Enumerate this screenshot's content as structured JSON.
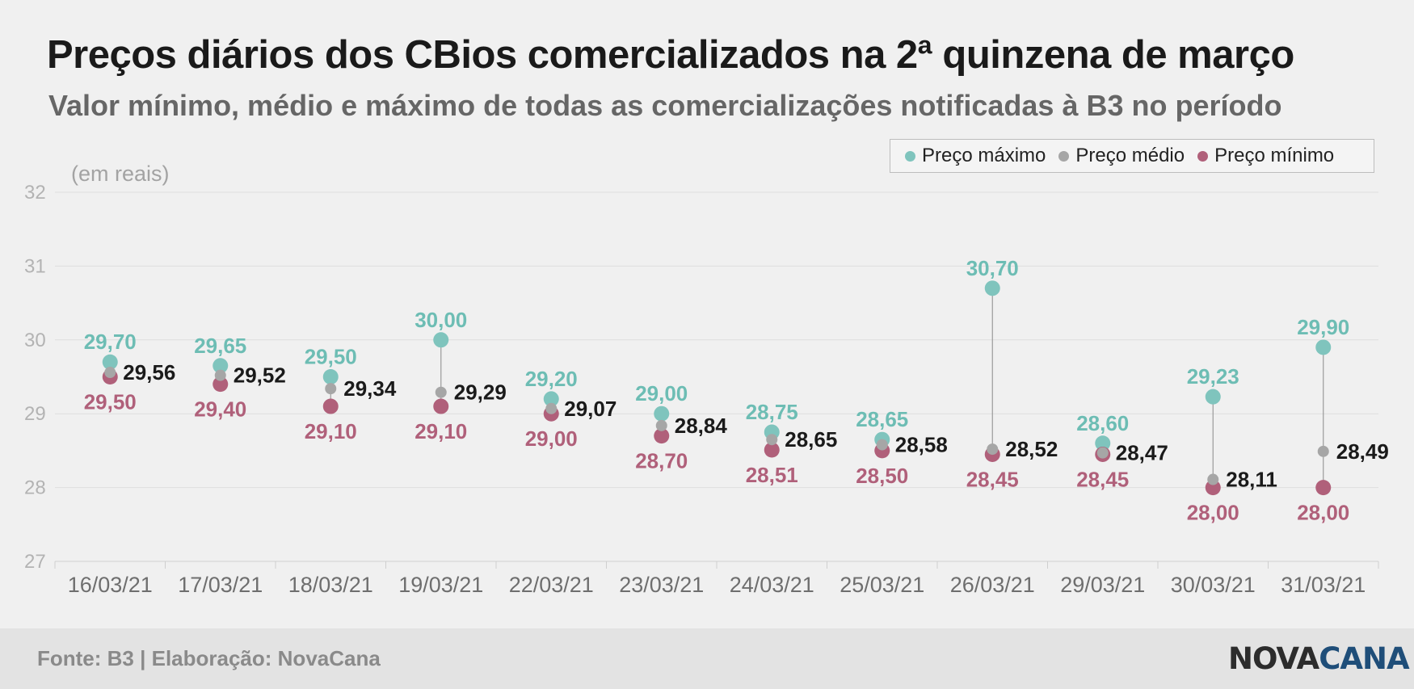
{
  "header": {
    "title": "Preços diários dos CBios comercializados na 2ª quinzena de março",
    "subtitle": "Valor mínimo, médio e máximo de todas as comercializações notificadas à B3 no período"
  },
  "legend": {
    "items": [
      {
        "label": "Preço máximo",
        "color": "#7fc4bd"
      },
      {
        "label": "Preço médio",
        "color": "#a6a6a6"
      },
      {
        "label": "Preço mínimo",
        "color": "#b0607a"
      }
    ]
  },
  "chart_data": {
    "type": "scatter",
    "unit_label": "(em reais)",
    "categories": [
      "16/03/21",
      "17/03/21",
      "18/03/21",
      "19/03/21",
      "22/03/21",
      "23/03/21",
      "24/03/21",
      "25/03/21",
      "26/03/21",
      "29/03/21",
      "30/03/21",
      "31/03/21"
    ],
    "series": [
      {
        "name": "Preço máximo",
        "color": "#7fc4bd",
        "label_color": "#6dbdb4",
        "values": [
          29.7,
          29.65,
          29.5,
          30.0,
          29.2,
          29.0,
          28.75,
          28.65,
          30.7,
          28.6,
          29.23,
          29.9
        ],
        "labels": [
          "29,70",
          "29,65",
          "29,50",
          "30,00",
          "29,20",
          "29,00",
          "28,75",
          "28,65",
          "30,70",
          "28,60",
          "29,23",
          "29,90"
        ]
      },
      {
        "name": "Preço médio",
        "color": "#a6a6a6",
        "label_color": "#1a1a1a",
        "values": [
          29.56,
          29.52,
          29.34,
          29.29,
          29.07,
          28.84,
          28.65,
          28.58,
          28.52,
          28.47,
          28.11,
          28.49
        ],
        "labels": [
          "29,56",
          "29,52",
          "29,34",
          "29,29",
          "29,07",
          "28,84",
          "28,65",
          "28,58",
          "28,52",
          "28,47",
          "28,11",
          "28,49"
        ]
      },
      {
        "name": "Preço mínimo",
        "color": "#b0607a",
        "label_color": "#b0607a",
        "values": [
          29.5,
          29.4,
          29.1,
          29.1,
          29.0,
          28.7,
          28.51,
          28.5,
          28.45,
          28.45,
          28.0,
          28.0
        ],
        "labels": [
          "29,50",
          "29,40",
          "29,10",
          "29,10",
          "29,00",
          "28,70",
          "28,51",
          "28,50",
          "28,45",
          "28,45",
          "28,00",
          "28,00"
        ]
      }
    ],
    "ylim": [
      27,
      32
    ],
    "yticks": [
      "27",
      "28",
      "29",
      "30",
      "31",
      "32"
    ],
    "grid": true,
    "legend_position": "top-right"
  },
  "footer": {
    "source": "Fonte: B3 | Elaboração: NovaCana",
    "brand_a": "NOVA",
    "brand_b": "CANA"
  }
}
